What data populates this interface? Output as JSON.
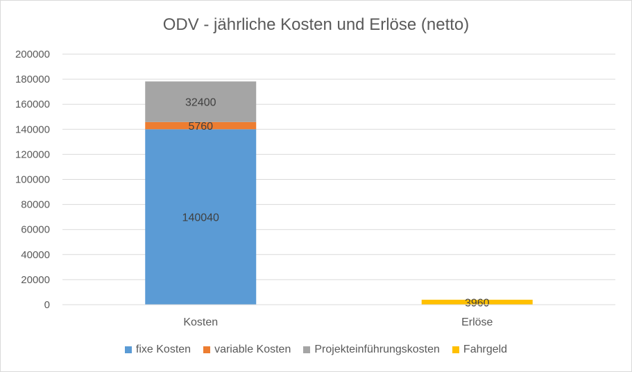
{
  "chart_data": {
    "type": "bar",
    "stacked": true,
    "title": "ODV - jährliche Kosten und Erlöse (netto)",
    "categories": [
      "Kosten",
      "Erlöse"
    ],
    "series": [
      {
        "name": "fixe Kosten",
        "color": "#5b9bd5",
        "values": [
          140040,
          0
        ]
      },
      {
        "name": "variable Kosten",
        "color": "#ed7d31",
        "values": [
          5760,
          0
        ]
      },
      {
        "name": "Projekteinführungskosten",
        "color": "#a5a5a5",
        "values": [
          32400,
          0
        ]
      },
      {
        "name": "Fahrgeld",
        "color": "#ffc000",
        "values": [
          0,
          3960
        ]
      }
    ],
    "ylim": [
      0,
      200000
    ],
    "yticks": [
      "0",
      "20000",
      "40000",
      "60000",
      "80000",
      "100000",
      "120000",
      "140000",
      "160000",
      "180000",
      "200000"
    ],
    "grid": true,
    "legend_position": "bottom"
  }
}
